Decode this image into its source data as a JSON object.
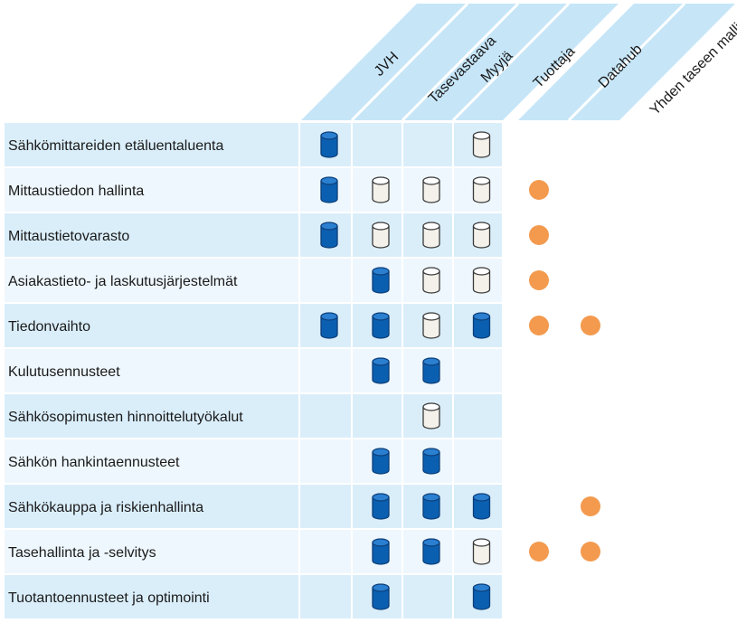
{
  "columns": [
    "JVH",
    "Tasevastaava",
    "Myyjä",
    "Tuottaja",
    "Datahub",
    "Yhden taseen malli"
  ],
  "rows": [
    {
      "label": "Sähkömittareiden etäluentaluenta",
      "cells": [
        "dark",
        "",
        "",
        "light"
      ],
      "dots": [
        false,
        false
      ]
    },
    {
      "label": "Mittaustiedon hallinta",
      "cells": [
        "dark",
        "light",
        "light",
        "light"
      ],
      "dots": [
        true,
        false
      ]
    },
    {
      "label": "Mittaustietovarasto",
      "cells": [
        "dark",
        "light",
        "light",
        "light"
      ],
      "dots": [
        true,
        false
      ]
    },
    {
      "label": "Asiakastieto- ja laskutusjärjestelmät",
      "cells": [
        "",
        "dark",
        "light",
        "light"
      ],
      "dots": [
        true,
        false
      ]
    },
    {
      "label": "Tiedonvaihto",
      "cells": [
        "dark",
        "dark",
        "light",
        "dark"
      ],
      "dots": [
        true,
        true
      ]
    },
    {
      "label": "Kulutusennusteet",
      "cells": [
        "",
        "dark",
        "dark",
        ""
      ],
      "dots": [
        false,
        false
      ]
    },
    {
      "label": "Sähkösopimusten hinnoittelutyökalut",
      "cells": [
        "",
        "",
        "light",
        ""
      ],
      "dots": [
        false,
        false
      ]
    },
    {
      "label": "Sähkön hankintaennusteet",
      "cells": [
        "",
        "dark",
        "dark",
        ""
      ],
      "dots": [
        false,
        false
      ]
    },
    {
      "label": "Sähkökauppa ja riskienhallinta",
      "cells": [
        "",
        "dark",
        "dark",
        "dark"
      ],
      "dots": [
        false,
        true
      ]
    },
    {
      "label": "Tasehallinta ja -selvitys",
      "cells": [
        "",
        "dark",
        "dark",
        "light"
      ],
      "dots": [
        true,
        true
      ]
    },
    {
      "label": "Tuotantoennusteet ja optimointi",
      "cells": [
        "",
        "dark",
        "",
        "dark"
      ],
      "dots": [
        false,
        false
      ]
    }
  ],
  "colors": {
    "cell_even": "#daeefa",
    "cell_odd": "#eef7fd",
    "header_band": "#c6e6f8",
    "cylinder_dark": "#0b5fb0",
    "cylinder_dark_top": "#2a7fd0",
    "cylinder_outline": "#0c3f7a",
    "cylinder_light": "#f4f1ea",
    "dot": "#f39a4e"
  }
}
